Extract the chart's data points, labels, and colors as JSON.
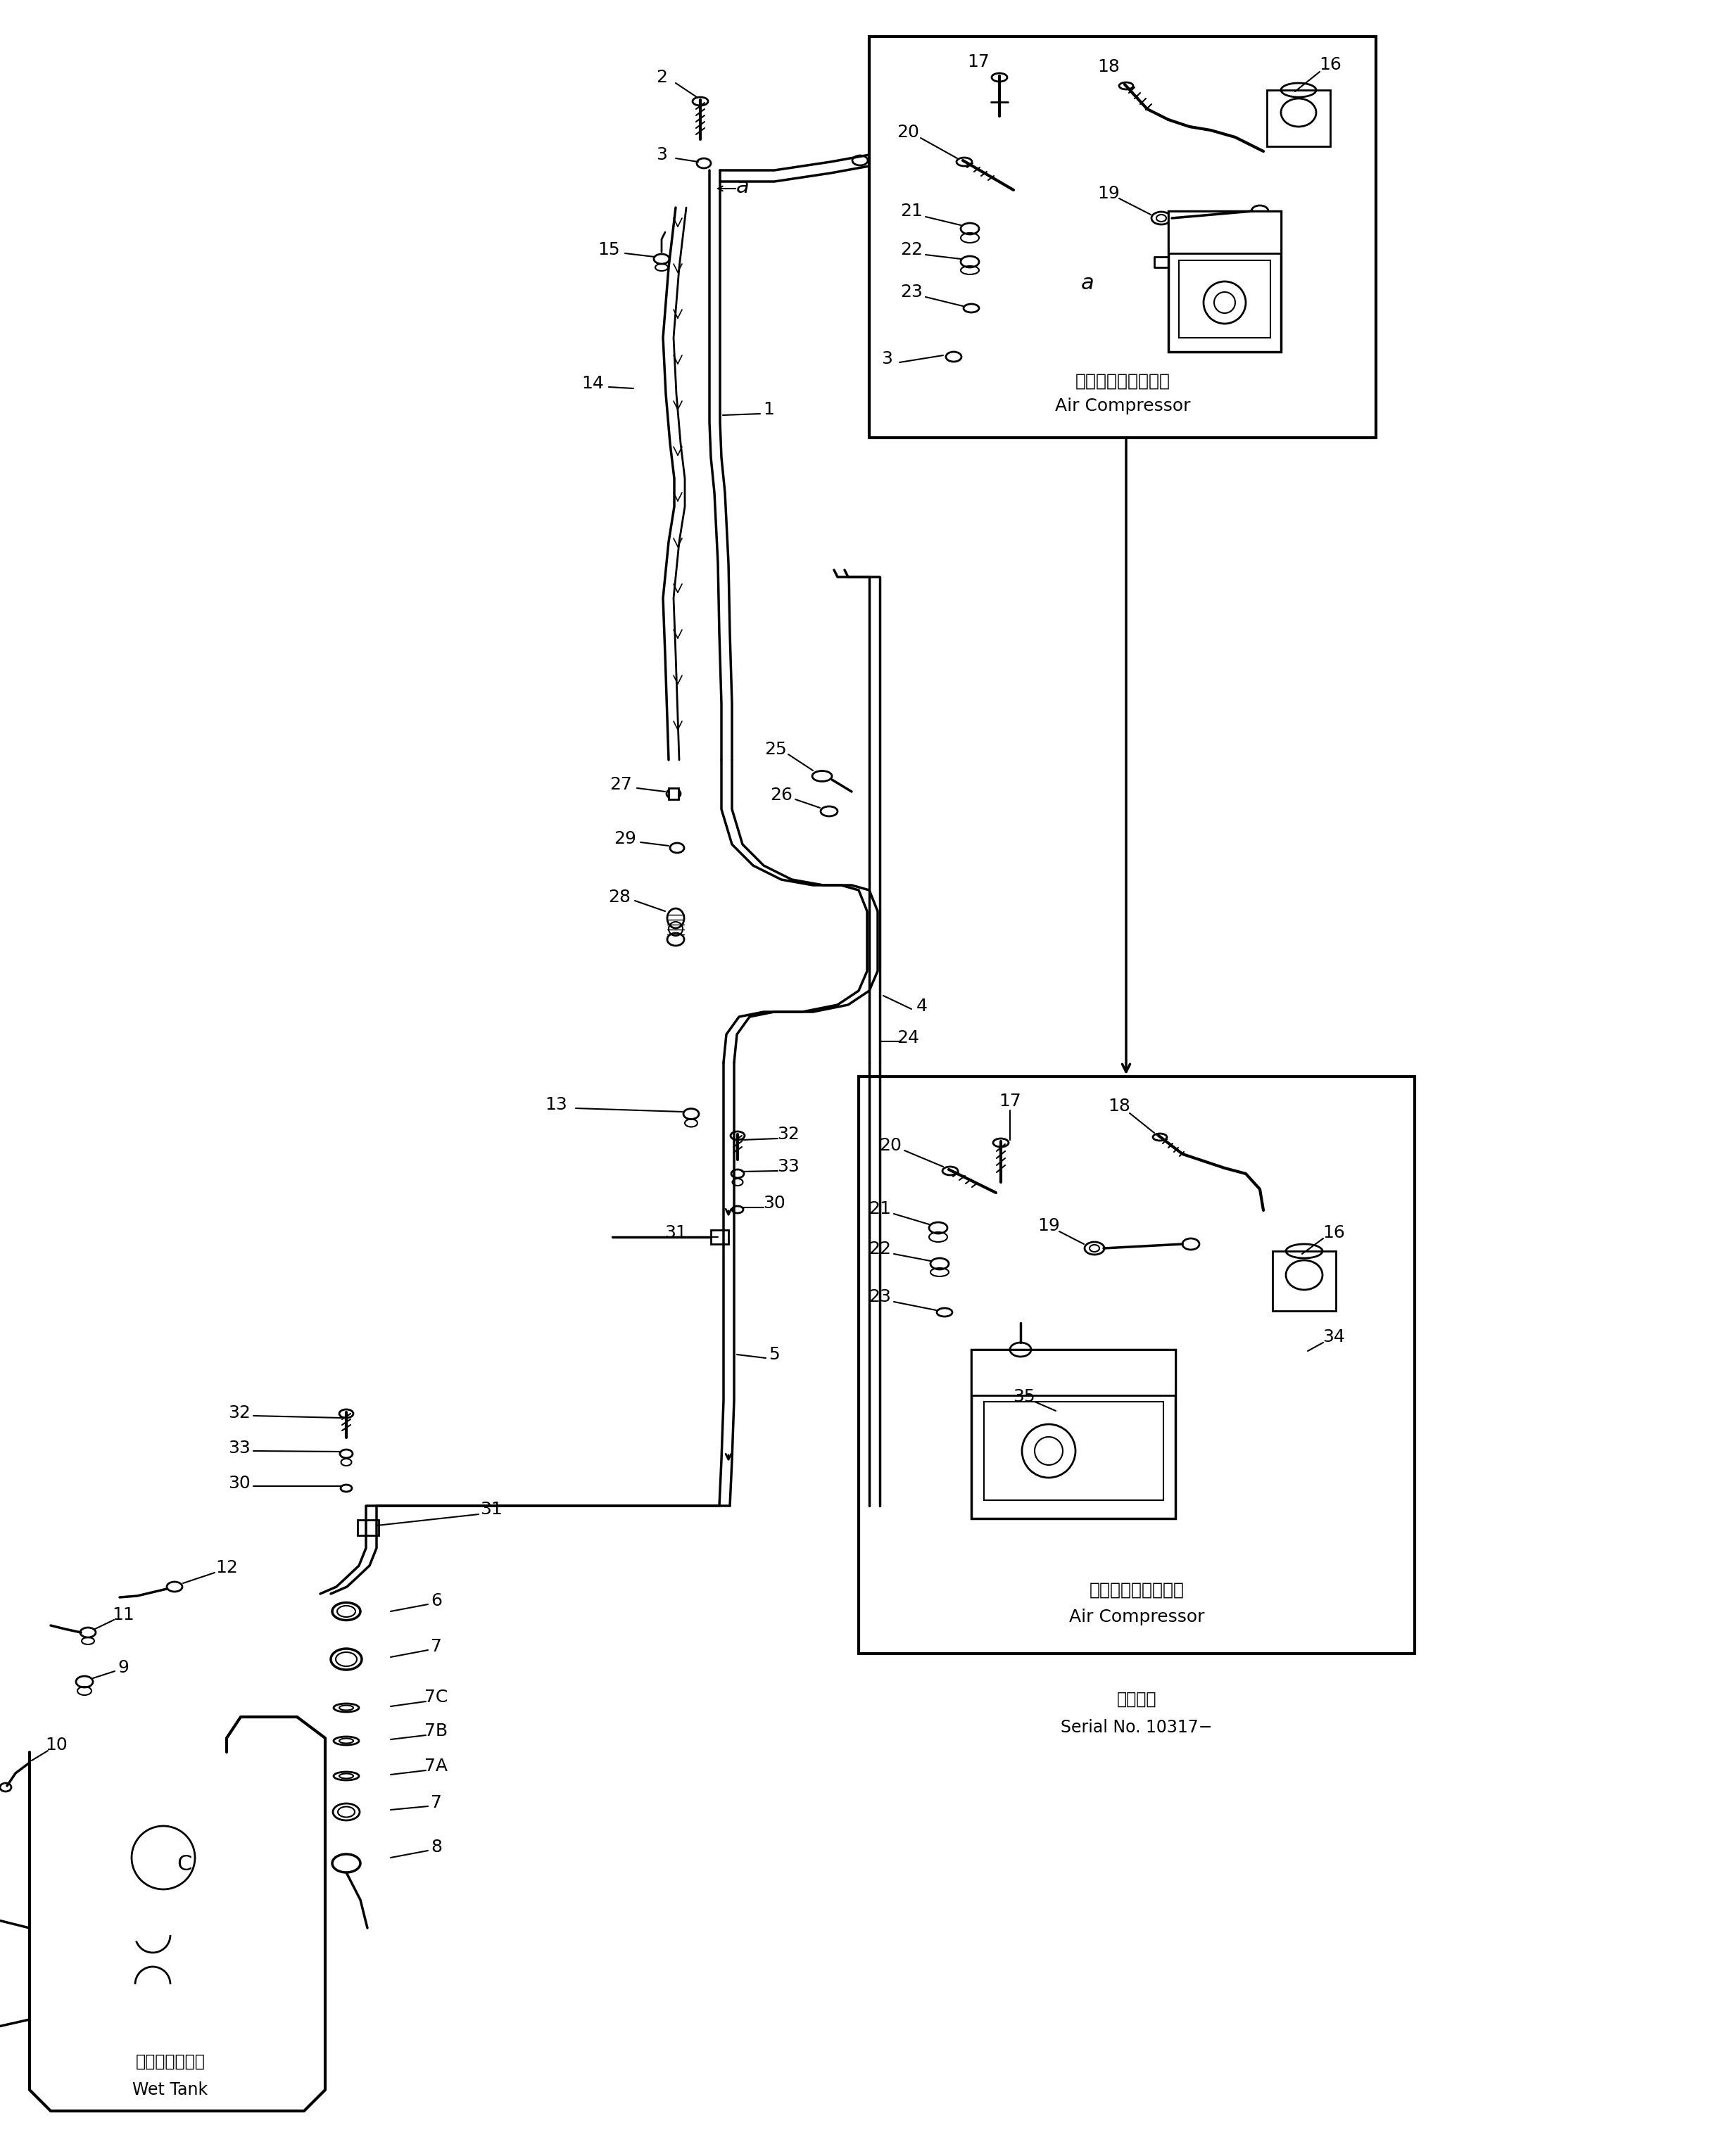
{
  "bg_color": "#ffffff",
  "line_color": "#000000",
  "fig_width": 24.31,
  "fig_height": 30.64,
  "labels": {
    "air_compressor_top_jp": "エアーコンプレッサ",
    "air_compressor_top_en": "Air Compressor",
    "air_compressor_bot_jp": "エアーコンプレッサ",
    "air_compressor_bot_en": "Air Compressor",
    "wet_tank_jp": "ウェットタンク",
    "wet_tank_en": "Wet Tank",
    "serial_label": "適用号機",
    "serial_no": "Serial No. 10317−"
  }
}
